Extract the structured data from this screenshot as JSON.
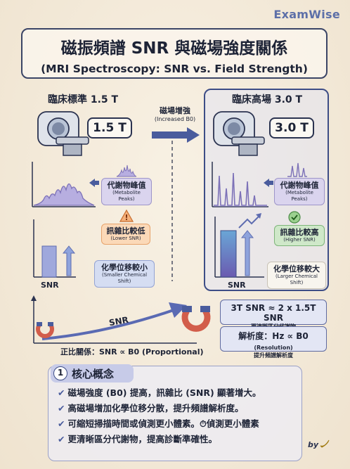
{
  "brand": "ExamWise",
  "title": {
    "zh": "磁振頻譜 SNR 與磁場強度關係",
    "en": "(MRI Spectroscopy: SNR vs. Field Strength)"
  },
  "left_panel": {
    "heading": "臨床標準 1.5 T",
    "field_value": "1.5 T",
    "peaks_tag": {
      "main": "代謝物峰值",
      "sub": "(Metabolite Peaks)"
    },
    "snr_tag": {
      "main": "訊雜比較低",
      "sub": "(Lower SNR)"
    },
    "shift_tag": {
      "main": "化學位移較小",
      "sub": "(Smaller Chemical Shift)"
    },
    "axis_label": "SNR"
  },
  "middle_arrow": {
    "main": "磁場增強",
    "sub": "(Increased B0)"
  },
  "right_panel": {
    "heading": "臨床高場 3.0 T",
    "field_value": "3.0 T",
    "peaks_tag": {
      "main": "代謝物峰值",
      "sub": "(Metabolite Peaks)"
    },
    "snr_tag": {
      "main": "訊雜比較高",
      "sub": "(Higher SNR)"
    },
    "shift_tag": {
      "main": "化學位移較大",
      "sub": "(Larger Chemical Shift)"
    },
    "axis_label": "SNR"
  },
  "proportional": {
    "curve_label": "SNR",
    "caption": "正比關係：SNR ∝ B0 (Proportional)"
  },
  "equations": [
    {
      "main": "3T SNR ≈ 2 x 1.5T SNR",
      "sub": "更清晰區分代謝物"
    },
    {
      "main": "解析度：Hz ∝ B0",
      "main_small": "(Resolution)",
      "sub": "提升頻譜解析度"
    }
  ],
  "concepts": {
    "number": "1",
    "title": "核心概念",
    "items": [
      "磁場強度 (B0) 提高，訊雜比 (SNR) 顯著增大。",
      "高磁場增加化學位移分散，提升頻譜解析度。",
      "可縮短掃描時間或偵測更小體素。⏱偵測更小體素",
      "更清晰區分代謝物，提高診斷準確性。"
    ]
  },
  "signature": "by",
  "colors": {
    "accent": "#3d4d86",
    "brand": "#5d6fa8",
    "peak_purple": "#8e82c4",
    "warning_orange": "#e7a36b",
    "ok_green": "#6fae6a"
  }
}
